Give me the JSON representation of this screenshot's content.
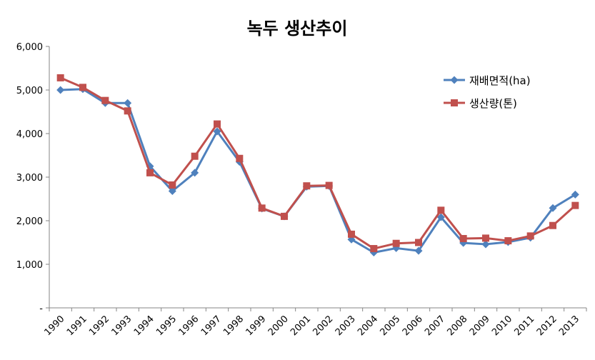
{
  "chart_data": {
    "type": "line",
    "title": "녹두 생산추이",
    "xlabel": "",
    "ylabel": "",
    "ylim": [
      0,
      6000
    ],
    "y_ticks": [
      {
        "value": 0,
        "label": "-"
      },
      {
        "value": 1000,
        "label": "1,000"
      },
      {
        "value": 2000,
        "label": "2,000"
      },
      {
        "value": 3000,
        "label": "3,000"
      },
      {
        "value": 4000,
        "label": "4,000"
      },
      {
        "value": 5000,
        "label": "5,000"
      },
      {
        "value": 6000,
        "label": "6,000"
      }
    ],
    "grid": false,
    "legend_position": "top-right",
    "categories": [
      "1990",
      "1991",
      "1992",
      "1993",
      "1994",
      "1995",
      "1996",
      "1997",
      "1998",
      "1999",
      "2000",
      "2001",
      "2002",
      "2003",
      "2004",
      "2005",
      "2006",
      "2007",
      "2008",
      "2009",
      "2010",
      "2011",
      "2012",
      "2013"
    ],
    "series": [
      {
        "name": "재배면적(ha)",
        "color": "#4F81BD",
        "marker": "diamond",
        "values": [
          5000,
          5020,
          4700,
          4700,
          3250,
          2680,
          3100,
          4050,
          3350,
          2280,
          2100,
          2780,
          2800,
          1570,
          1270,
          1370,
          1310,
          2080,
          1490,
          1460,
          1510,
          1610,
          2290,
          2600
        ]
      },
      {
        "name": "생산량(톤)",
        "color": "#C0504D",
        "marker": "square",
        "values": [
          5280,
          5060,
          4760,
          4520,
          3100,
          2820,
          3480,
          4220,
          3430,
          2290,
          2100,
          2800,
          2810,
          1690,
          1360,
          1480,
          1500,
          2240,
          1590,
          1600,
          1540,
          1650,
          1890,
          2350
        ]
      }
    ]
  }
}
